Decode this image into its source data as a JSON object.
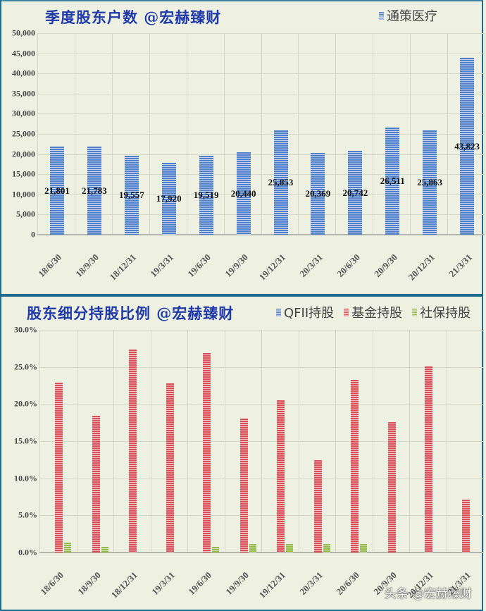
{
  "colors": {
    "panel_bg": "#eef0e2",
    "panel_border": "#1e6a8a",
    "title": "#1f3aa8",
    "series_blue": "#4f7fc8",
    "series_red": "#d94f58",
    "series_green": "#92b94a"
  },
  "top": {
    "title": "季度股东户数 @宏赫臻财",
    "legend": [
      {
        "label": "通策医疗",
        "color": "#4f7fc8"
      }
    ]
  },
  "bottom": {
    "title": "股东细分持股比例 @宏赫臻财",
    "legend": [
      {
        "label": "QFII持股",
        "color": "#4f7fc8"
      },
      {
        "label": "基金持股",
        "color": "#d94f58"
      },
      {
        "label": "社保持股",
        "color": "#92b94a"
      }
    ]
  },
  "watermark": "头条 @宏赫臻财",
  "chart_data": [
    {
      "type": "bar",
      "title": "季度股东户数 @宏赫臻财",
      "xlabel": "",
      "ylabel": "",
      "categories": [
        "18/6/30",
        "18/9/30",
        "18/12/31",
        "19/3/31",
        "19/6/30",
        "19/9/30",
        "19/12/31",
        "20/3/31",
        "20/6/30",
        "20/9/30",
        "20/12/31",
        "21/3/31"
      ],
      "series": [
        {
          "name": "通策医疗",
          "values": [
            21801,
            21783,
            19557,
            17920,
            19519,
            20440,
            25853,
            20369,
            20742,
            26511,
            25863,
            43823
          ]
        }
      ],
      "data_labels": [
        "21,801",
        "21,783",
        "19,557",
        "17,920",
        "19,519",
        "20,440",
        "25,853",
        "20,369",
        "20,742",
        "26,511",
        "25,863",
        "43,823"
      ],
      "ylim": [
        0,
        50000
      ],
      "yticks": [
        "0",
        "5,000",
        "10,000",
        "15,000",
        "20,000",
        "25,000",
        "30,000",
        "35,000",
        "40,000",
        "45,000",
        "50,000"
      ],
      "grid": true,
      "legend_position": "top-right"
    },
    {
      "type": "bar",
      "title": "股东细分持股比例 @宏赫臻财",
      "xlabel": "",
      "ylabel": "",
      "categories": [
        "18/6/30",
        "18/9/30",
        "18/12/31",
        "19/3/31",
        "19/6/30",
        "19/9/30",
        "19/12/31",
        "20/3/31",
        "20/6/30",
        "20/9/30",
        "20/12/31",
        "21/3/31"
      ],
      "series": [
        {
          "name": "QFII持股",
          "values": [
            0,
            0,
            0,
            0,
            0,
            0,
            0,
            0,
            0,
            0,
            0,
            0
          ]
        },
        {
          "name": "基金持股",
          "values": [
            22.9,
            18.4,
            27.3,
            22.8,
            26.9,
            18.0,
            20.5,
            12.4,
            23.3,
            17.6,
            25.1,
            7.1
          ]
        },
        {
          "name": "社保持股",
          "values": [
            1.3,
            0.8,
            0,
            0,
            0.8,
            1.1,
            1.1,
            1.1,
            1.1,
            0,
            0,
            0
          ]
        }
      ],
      "unit": "%",
      "ylim": [
        0,
        30
      ],
      "yticks": [
        "0.0%",
        "5.0%",
        "10.0%",
        "15.0%",
        "20.0%",
        "25.0%",
        "30.0%"
      ],
      "grid": true,
      "legend_position": "top-right"
    }
  ]
}
